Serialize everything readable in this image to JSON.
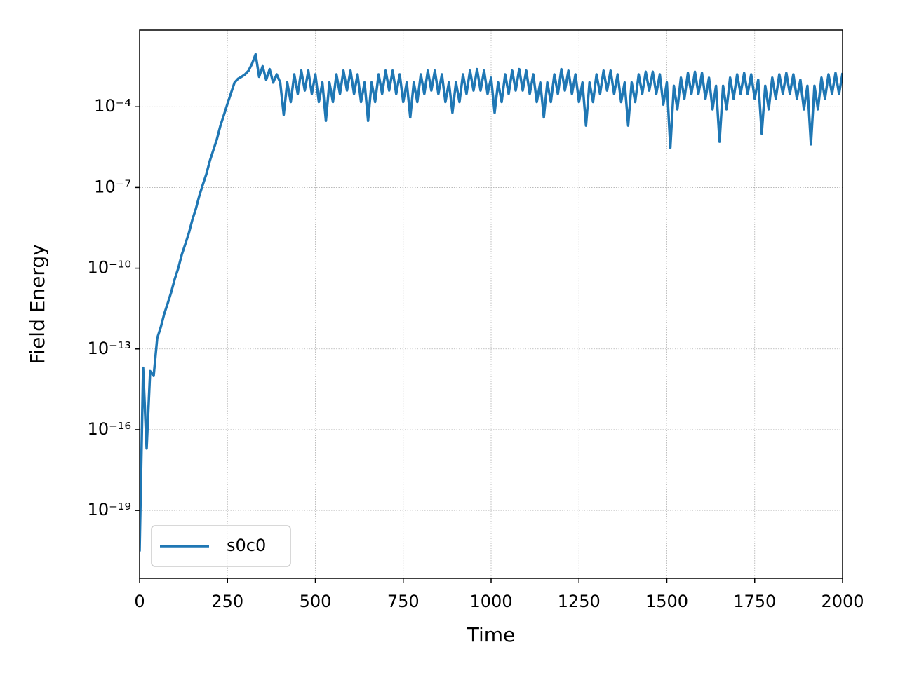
{
  "chart_data": {
    "type": "line",
    "x_label": "Time",
    "y_label": "Field Energy",
    "log_y": true,
    "grid": true,
    "legend": "lower left",
    "xlim": [
      0,
      2000
    ],
    "xticks": [
      0,
      250,
      500,
      750,
      1000,
      1250,
      1500,
      1750,
      2000
    ],
    "ylim": [
      3e-22,
      0.07
    ],
    "yticks": [
      {
        "value": 1e-19,
        "label": "10⁻¹⁹"
      },
      {
        "value": 1e-16,
        "label": "10⁻¹⁶"
      },
      {
        "value": 1e-13,
        "label": "10⁻¹³"
      },
      {
        "value": 1e-10,
        "label": "10⁻¹⁰"
      },
      {
        "value": 1e-07,
        "label": "10⁻⁷"
      },
      {
        "value": 0.0001,
        "label": "10⁻⁴"
      }
    ],
    "x": [
      0,
      10,
      20,
      30,
      40,
      50,
      60,
      70,
      80,
      90,
      100,
      110,
      120,
      130,
      140,
      150,
      160,
      170,
      180,
      190,
      200,
      210,
      220,
      230,
      240,
      250,
      260,
      270,
      280,
      290,
      300,
      310,
      320,
      330,
      340,
      350,
      360,
      370,
      380,
      390,
      400,
      410,
      420,
      430,
      440,
      450,
      460,
      470,
      480,
      490,
      500,
      510,
      520,
      530,
      540,
      550,
      560,
      570,
      580,
      590,
      600,
      610,
      620,
      630,
      640,
      650,
      660,
      670,
      680,
      690,
      700,
      710,
      720,
      730,
      740,
      750,
      760,
      770,
      780,
      790,
      800,
      810,
      820,
      830,
      840,
      850,
      860,
      870,
      880,
      890,
      900,
      910,
      920,
      930,
      940,
      950,
      960,
      970,
      980,
      990,
      1000,
      1010,
      1020,
      1030,
      1040,
      1050,
      1060,
      1070,
      1080,
      1090,
      1100,
      1110,
      1120,
      1130,
      1140,
      1150,
      1160,
      1170,
      1180,
      1190,
      1200,
      1210,
      1220,
      1230,
      1240,
      1250,
      1260,
      1270,
      1280,
      1290,
      1300,
      1310,
      1320,
      1330,
      1340,
      1350,
      1360,
      1370,
      1380,
      1390,
      1400,
      1410,
      1420,
      1430,
      1440,
      1450,
      1460,
      1470,
      1480,
      1490,
      1500,
      1510,
      1520,
      1530,
      1540,
      1550,
      1560,
      1570,
      1580,
      1590,
      1600,
      1610,
      1620,
      1630,
      1640,
      1650,
      1660,
      1670,
      1680,
      1690,
      1700,
      1710,
      1720,
      1730,
      1740,
      1750,
      1760,
      1770,
      1780,
      1790,
      1800,
      1810,
      1820,
      1830,
      1840,
      1850,
      1860,
      1870,
      1880,
      1890,
      1900,
      1910,
      1920,
      1930,
      1940,
      1950,
      1960,
      1970,
      1980,
      1990,
      2000
    ],
    "series": [
      {
        "name": "s0c0",
        "color": "#1f77b4",
        "values": [
          3e-21,
          2e-14,
          2e-17,
          1.5e-14,
          1e-14,
          2.5e-13,
          6.3e-13,
          2e-12,
          5e-12,
          1.3e-11,
          4e-11,
          1e-10,
          3.2e-10,
          7.9e-10,
          2e-09,
          6.3e-09,
          1.6e-08,
          5e-08,
          1.3e-07,
          3.2e-07,
          1e-06,
          2.5e-06,
          6.3e-06,
          2e-05,
          5e-05,
          0.00013,
          0.00032,
          0.00079,
          0.0011,
          0.0013,
          0.0016,
          0.0022,
          0.004,
          0.0089,
          0.0013,
          0.0032,
          0.001,
          0.0025,
          0.00079,
          0.0016,
          0.0008,
          5e-05,
          0.0008,
          0.00015,
          0.0016,
          0.0003,
          0.0022,
          0.0004,
          0.0022,
          0.0003,
          0.0016,
          0.00015,
          0.0008,
          3e-05,
          0.0008,
          0.00015,
          0.0016,
          0.0003,
          0.0022,
          0.0004,
          0.0022,
          0.0003,
          0.0016,
          0.00015,
          0.0008,
          3e-05,
          0.0008,
          0.00015,
          0.0016,
          0.0003,
          0.0022,
          0.0004,
          0.0022,
          0.0003,
          0.0016,
          0.00015,
          0.0008,
          4e-05,
          0.0008,
          0.00015,
          0.0016,
          0.0003,
          0.0022,
          0.0004,
          0.0022,
          0.0003,
          0.0016,
          0.00015,
          0.0008,
          6e-05,
          0.0008,
          0.00015,
          0.0016,
          0.0003,
          0.0022,
          0.0004,
          0.0025,
          0.0004,
          0.0022,
          0.0003,
          0.0012,
          6e-05,
          0.0008,
          0.00015,
          0.0016,
          0.0003,
          0.0022,
          0.0004,
          0.0025,
          0.0004,
          0.0022,
          0.0003,
          0.0016,
          0.00015,
          0.0008,
          4e-05,
          0.0008,
          0.00015,
          0.0016,
          0.0003,
          0.0025,
          0.0004,
          0.0022,
          0.0003,
          0.0016,
          0.00015,
          0.0008,
          2e-05,
          0.0008,
          0.00015,
          0.0016,
          0.0003,
          0.0022,
          0.0004,
          0.0022,
          0.0003,
          0.0016,
          0.00015,
          0.0008,
          2e-05,
          0.0008,
          0.00015,
          0.0016,
          0.0003,
          0.002,
          0.0004,
          0.002,
          0.0003,
          0.0016,
          0.00012,
          0.0008,
          3e-06,
          0.0006,
          8e-05,
          0.0012,
          0.0002,
          0.0018,
          0.0003,
          0.002,
          0.0003,
          0.0018,
          0.0002,
          0.0012,
          8e-05,
          0.0006,
          5e-06,
          0.0006,
          8e-05,
          0.0012,
          0.0002,
          0.0016,
          0.0003,
          0.0018,
          0.0003,
          0.0016,
          0.0002,
          0.001,
          1e-05,
          0.0006,
          8e-05,
          0.0012,
          0.0002,
          0.0016,
          0.0003,
          0.0018,
          0.0003,
          0.0016,
          0.0002,
          0.001,
          8e-05,
          0.0006,
          4e-06,
          0.0006,
          8e-05,
          0.0012,
          0.0002,
          0.0016,
          0.0003,
          0.0018,
          0.0003,
          0.0018
        ]
      }
    ]
  }
}
